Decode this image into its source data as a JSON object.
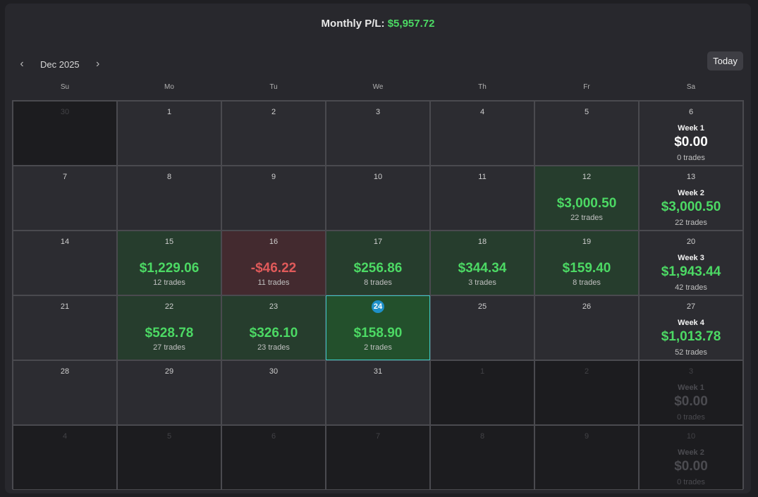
{
  "header": {
    "label": "Monthly P/L:",
    "value": "$5,957.72"
  },
  "nav": {
    "prev": "‹",
    "month": "Dec 2025",
    "next": "›",
    "today": "Today"
  },
  "dows": [
    "Su",
    "Mo",
    "Tu",
    "We",
    "Th",
    "Fr",
    "Sa"
  ],
  "weeks": [
    [
      {
        "d": "30",
        "out": true
      },
      {
        "d": "1"
      },
      {
        "d": "2"
      },
      {
        "d": "3"
      },
      {
        "d": "4"
      },
      {
        "d": "5"
      },
      {
        "d": "6",
        "week": "Week 1",
        "wval": "$0.00",
        "wtrades": "0 trades",
        "zero": true
      }
    ],
    [
      {
        "d": "7"
      },
      {
        "d": "8"
      },
      {
        "d": "9"
      },
      {
        "d": "10"
      },
      {
        "d": "11"
      },
      {
        "d": "12",
        "pnl": "$3,000.50",
        "trades": "22 trades",
        "kind": "win"
      },
      {
        "d": "13",
        "week": "Week 2",
        "wval": "$3,000.50",
        "wtrades": "22 trades"
      }
    ],
    [
      {
        "d": "14"
      },
      {
        "d": "15",
        "pnl": "$1,229.06",
        "trades": "12 trades",
        "kind": "win"
      },
      {
        "d": "16",
        "pnl": "-$46.22",
        "trades": "11 trades",
        "kind": "loss"
      },
      {
        "d": "17",
        "pnl": "$256.86",
        "trades": "8 trades",
        "kind": "win"
      },
      {
        "d": "18",
        "pnl": "$344.34",
        "trades": "3 trades",
        "kind": "win"
      },
      {
        "d": "19",
        "pnl": "$159.40",
        "trades": "8 trades",
        "kind": "win"
      },
      {
        "d": "20",
        "week": "Week 3",
        "wval": "$1,943.44",
        "wtrades": "42 trades"
      }
    ],
    [
      {
        "d": "21"
      },
      {
        "d": "22",
        "pnl": "$528.78",
        "trades": "27 trades",
        "kind": "win"
      },
      {
        "d": "23",
        "pnl": "$326.10",
        "trades": "23 trades",
        "kind": "win"
      },
      {
        "d": "24",
        "pnl": "$158.90",
        "trades": "2 trades",
        "kind": "sel",
        "today": true
      },
      {
        "d": "25"
      },
      {
        "d": "26"
      },
      {
        "d": "27",
        "week": "Week 4",
        "wval": "$1,013.78",
        "wtrades": "52 trades"
      }
    ],
    [
      {
        "d": "28"
      },
      {
        "d": "29"
      },
      {
        "d": "30"
      },
      {
        "d": "31"
      },
      {
        "d": "1",
        "out": true
      },
      {
        "d": "2",
        "out": true
      },
      {
        "d": "3",
        "out": true,
        "week": "Week 1",
        "wval": "$0.00",
        "wtrades": "0 trades"
      }
    ],
    [
      {
        "d": "4",
        "out": true
      },
      {
        "d": "5",
        "out": true
      },
      {
        "d": "6",
        "out": true
      },
      {
        "d": "7",
        "out": true
      },
      {
        "d": "8",
        "out": true
      },
      {
        "d": "9",
        "out": true
      },
      {
        "d": "10",
        "out": true,
        "week": "Week 2",
        "wval": "$0.00",
        "wtrades": "0 trades"
      }
    ]
  ]
}
